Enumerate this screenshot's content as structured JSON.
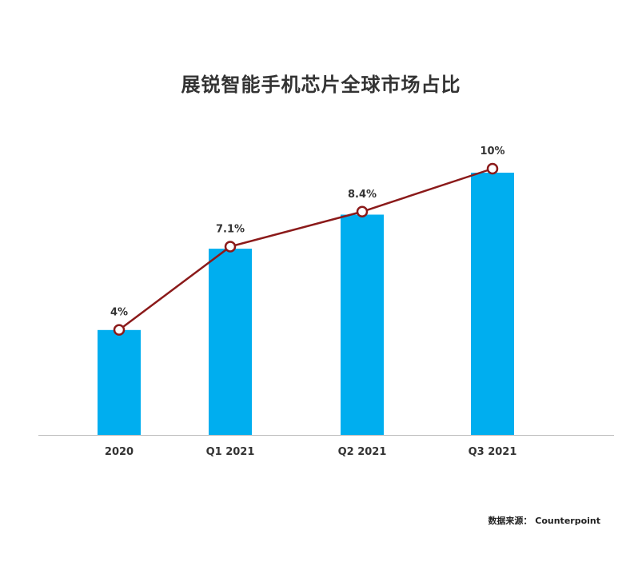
{
  "chart_data": {
    "type": "bar",
    "title": "展锐智能手机芯片全球市场占比",
    "categories": [
      "2020",
      "Q1 2021",
      "Q2 2021",
      "Q3 2021"
    ],
    "series": [
      {
        "values": [
          4,
          7.1,
          8.4,
          10
        ],
        "labels": [
          "4%",
          "7.1%",
          "8.4%",
          "10%"
        ]
      }
    ],
    "overlay_line": true,
    "unit": "%",
    "grid": false,
    "legend": "none",
    "colors": {
      "bar": "#00aeef",
      "line": "#8b1a1a",
      "marker_fill": "#ffffff",
      "axis": "#bbbbbb",
      "text": "#333333"
    }
  },
  "source_note": "数据来源： Counterpoint"
}
